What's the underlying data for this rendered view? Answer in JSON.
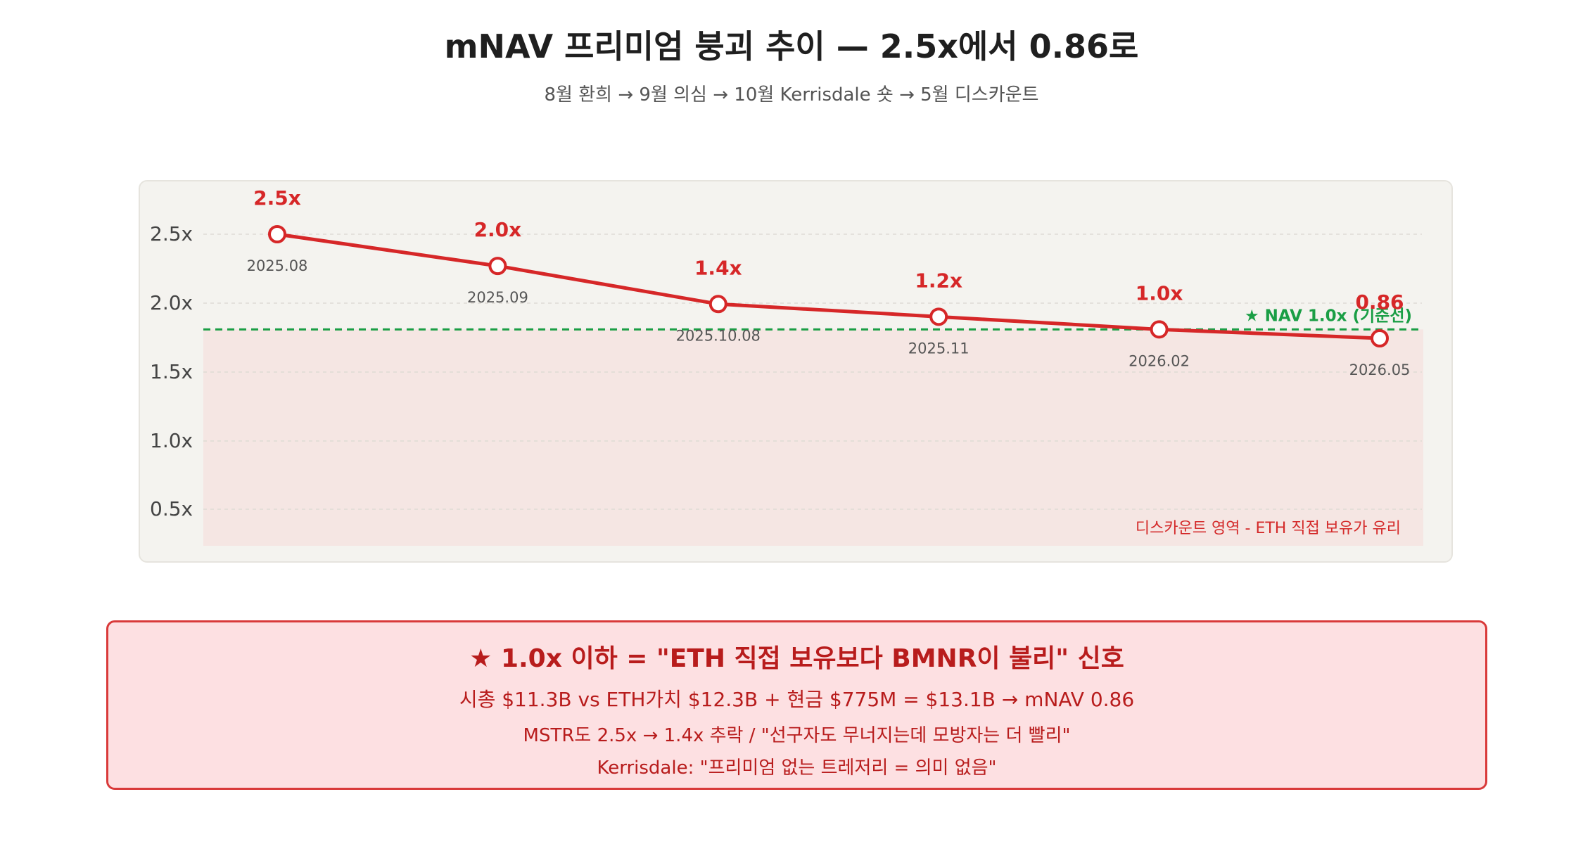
{
  "page": {
    "title": "mNAV 프리미엄 붕괴 추이 — 2.5x에서 0.86로",
    "subtitle": "8월 환희 → 9월 의심 → 10월 Kerrisdale 숏 → 5월 디스카운트"
  },
  "chart_data": {
    "type": "line",
    "y_tick_labels": [
      "2.5x",
      "2.0x",
      "1.5x",
      "1.0x",
      "0.5x"
    ],
    "series": [
      {
        "points": [
          {
            "date": "2025.08",
            "label": "2.5x",
            "value": 2.5
          },
          {
            "date": "2025.09",
            "label": "2.0x",
            "value": 2.0
          },
          {
            "date": "2025.10.08",
            "label": "1.4x",
            "value": 1.4
          },
          {
            "date": "2025.11",
            "label": "1.2x",
            "value": 1.2
          },
          {
            "date": "2026.02",
            "label": "1.0x",
            "value": 1.0
          },
          {
            "date": "2026.05",
            "label": "0.86",
            "value": 0.86
          }
        ]
      }
    ],
    "reference_line": {
      "value": 1.0,
      "label": "★ NAV 1.0x (기준선)",
      "style": "dashed"
    },
    "discount_zone_label": "디스카운트 영역 - ETH 직접 보유가 유리",
    "grid": true,
    "colors": {
      "line": "#d62728",
      "reference": "#1a9e45",
      "zone": "#f5e6e3"
    }
  },
  "callout": {
    "headline": "★ 1.0x 이하 = \"ETH 직접 보유보다 BMNR이 불리\" 신호",
    "line1": "시총 $11.3B vs ETH가치 $12.3B + 현금 $775M = $13.1B → mNAV 0.86",
    "line2": "MSTR도 2.5x → 1.4x 추락 / \"선구자도 무너지는데 모방자는 더 빨리\"",
    "line3": "Kerrisdale: \"프리미엄 없는 트레저리 = 의미 없음\""
  }
}
